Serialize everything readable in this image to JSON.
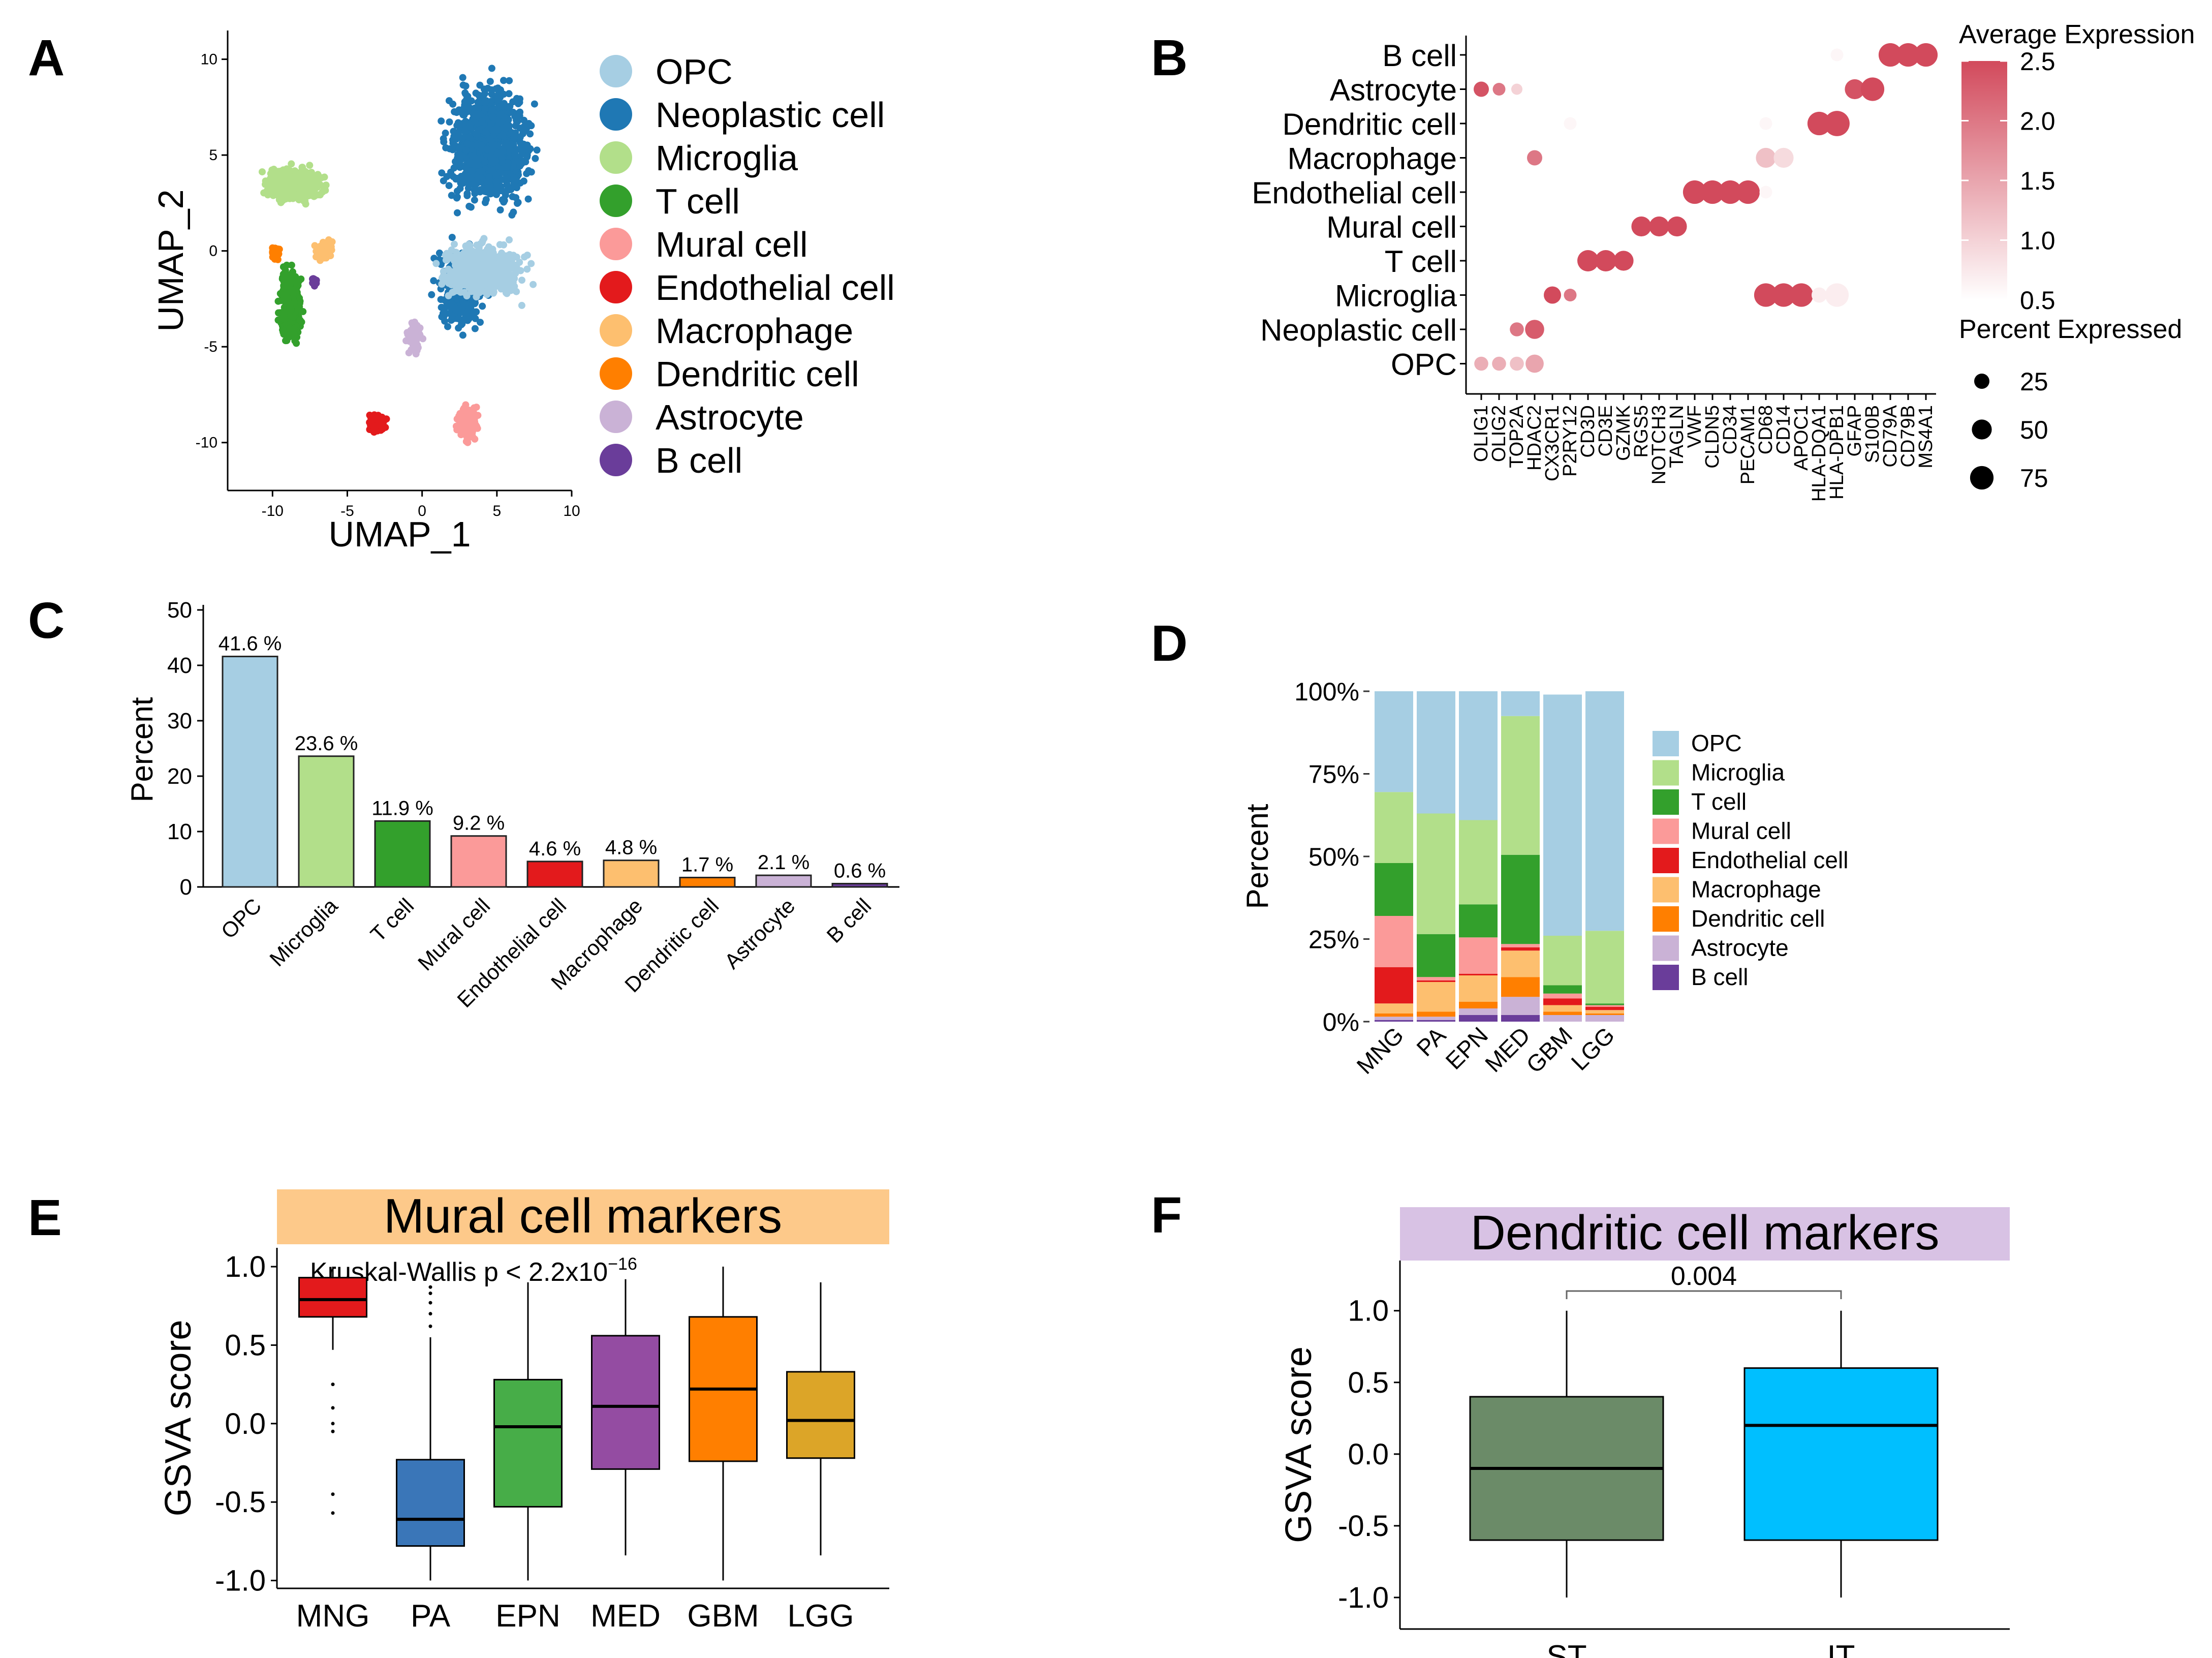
{
  "colors": {
    "OPC": "#a6cee3",
    "Neoplastic cell": "#1f78b4",
    "Microglia": "#b2df8a",
    "T cell": "#33a02c",
    "Mural cell": "#fb9a99",
    "Endothelial cell": "#e31a1c",
    "Macrophage": "#fdbf6f",
    "Dendritic cell": "#ff7f00",
    "Astrocyte": "#cab2d6",
    "B cell": "#6a3d9a",
    "dot_high": "#d24a5c",
    "mural_banner": "#fdc98a",
    "dendritic_banner": "#d8c2e4"
  },
  "panel_labels": [
    "A",
    "B",
    "C",
    "D",
    "E",
    "F"
  ],
  "chart_data": [
    {
      "panel": "A",
      "type": "scatter",
      "title": "",
      "xlabel": "UMAP_1",
      "ylabel": "UMAP_2",
      "xlim": [
        -13,
        10
      ],
      "ylim": [
        -12.5,
        11.5
      ],
      "xticks": [
        "-10",
        "-5",
        "0",
        "5",
        "10"
      ],
      "xtick_values": [
        -10,
        -5,
        0,
        5,
        10
      ],
      "yticks": [
        "10",
        "5",
        "0",
        "-5",
        "-10"
      ],
      "ytick_values": [
        10,
        5,
        0,
        -5,
        -10
      ],
      "legend": [
        "OPC",
        "Neoplastic cell",
        "Microglia",
        "T cell",
        "Mural cell",
        "Endothelial cell",
        "Macrophage",
        "Dendritic cell",
        "Astrocyte",
        "B cell"
      ],
      "clusters": [
        {
          "name": "Neoplastic cell",
          "center": [
            4.5,
            5.5
          ],
          "spread": [
            3.2,
            3.6
          ],
          "n": 900
        },
        {
          "name": "Neoplastic cell",
          "center": [
            2.5,
            -2.0
          ],
          "spread": [
            1.8,
            2.5
          ],
          "n": 350
        },
        {
          "name": "OPC",
          "center": [
            4.0,
            -1.0
          ],
          "spread": [
            3.0,
            1.6
          ],
          "n": 650
        },
        {
          "name": "Microglia",
          "center": [
            -8.5,
            3.5
          ],
          "spread": [
            2.2,
            1.0
          ],
          "n": 450
        },
        {
          "name": "T cell",
          "center": [
            -8.8,
            -2.8
          ],
          "spread": [
            0.8,
            2.2
          ],
          "n": 350
        },
        {
          "name": "Mural cell",
          "center": [
            3.0,
            -9.0
          ],
          "spread": [
            0.8,
            1.0
          ],
          "n": 200
        },
        {
          "name": "Endothelial cell",
          "center": [
            -3.0,
            -9.0
          ],
          "spread": [
            0.6,
            0.5
          ],
          "n": 150
        },
        {
          "name": "Macrophage",
          "center": [
            -6.5,
            0.0
          ],
          "spread": [
            0.7,
            0.6
          ],
          "n": 90
        },
        {
          "name": "Dendritic cell",
          "center": [
            -9.8,
            -0.1
          ],
          "spread": [
            0.3,
            0.4
          ],
          "n": 50
        },
        {
          "name": "Astrocyte",
          "center": [
            -0.5,
            -4.5
          ],
          "spread": [
            0.6,
            1.0
          ],
          "n": 80
        },
        {
          "name": "B cell",
          "center": [
            -7.2,
            -1.6
          ],
          "spread": [
            0.2,
            0.3
          ],
          "n": 25
        }
      ]
    },
    {
      "panel": "B",
      "type": "dotplot",
      "cell_types": [
        "B cell",
        "Astrocyte",
        "Dendritic cell",
        "Macrophage",
        "Endothelial cell",
        "Mural cell",
        "T cell",
        "Microglia",
        "Neoplastic cell",
        "OPC"
      ],
      "genes": [
        "OLIG1",
        "OLIG2",
        "TOP2A",
        "HDAC2",
        "CX3CR1",
        "P2RY12",
        "CD3D",
        "CD3E",
        "GZMK",
        "RGS5",
        "NOTCH3",
        "TAGLN",
        "VWF",
        "CLDN5",
        "CD34",
        "PECAM1",
        "CD68",
        "CD14",
        "APOC1",
        "HLA-DQA1",
        "HLA-DPB1",
        "GFAP",
        "S100B",
        "CD79A",
        "CD79B",
        "MS4A1"
      ],
      "points": [
        {
          "cell": "B cell",
          "gene": "CD79A",
          "pct": 75,
          "avg": 2.5
        },
        {
          "cell": "B cell",
          "gene": "CD79B",
          "pct": 75,
          "avg": 2.5
        },
        {
          "cell": "B cell",
          "gene": "MS4A1",
          "pct": 75,
          "avg": 2.5
        },
        {
          "cell": "B cell",
          "gene": "HLA-DPB1",
          "pct": 15,
          "avg": 0.6
        },
        {
          "cell": "Astrocyte",
          "gene": "OLIG1",
          "pct": 25,
          "avg": 2.4
        },
        {
          "cell": "Astrocyte",
          "gene": "OLIG2",
          "pct": 15,
          "avg": 2.0
        },
        {
          "cell": "Astrocyte",
          "gene": "TOP2A",
          "pct": 10,
          "avg": 1.0
        },
        {
          "cell": "Astrocyte",
          "gene": "GFAP",
          "pct": 50,
          "avg": 2.4
        },
        {
          "cell": "Astrocyte",
          "gene": "S100B",
          "pct": 75,
          "avg": 2.5
        },
        {
          "cell": "Dendritic cell",
          "gene": "P2RY12",
          "pct": 15,
          "avg": 0.6
        },
        {
          "cell": "Dendritic cell",
          "gene": "CD68",
          "pct": 15,
          "avg": 0.6
        },
        {
          "cell": "Dendritic cell",
          "gene": "HLA-DQA1",
          "pct": 75,
          "avg": 2.5
        },
        {
          "cell": "Dendritic cell",
          "gene": "HLA-DPB1",
          "pct": 90,
          "avg": 2.5
        },
        {
          "cell": "Macrophage",
          "gene": "HDAC2",
          "pct": 25,
          "avg": 2.0
        },
        {
          "cell": "Macrophage",
          "gene": "CD68",
          "pct": 50,
          "avg": 1.2
        },
        {
          "cell": "Macrophage",
          "gene": "CD14",
          "pct": 50,
          "avg": 0.9
        },
        {
          "cell": "Endothelial cell",
          "gene": "VWF",
          "pct": 75,
          "avg": 2.5
        },
        {
          "cell": "Endothelial cell",
          "gene": "CLDN5",
          "pct": 75,
          "avg": 2.5
        },
        {
          "cell": "Endothelial cell",
          "gene": "CD34",
          "pct": 75,
          "avg": 2.5
        },
        {
          "cell": "Endothelial cell",
          "gene": "PECAM1",
          "pct": 75,
          "avg": 2.5
        },
        {
          "cell": "Endothelial cell",
          "gene": "CD68",
          "pct": 15,
          "avg": 0.6
        },
        {
          "cell": "Mural cell",
          "gene": "RGS5",
          "pct": 50,
          "avg": 2.5
        },
        {
          "cell": "Mural cell",
          "gene": "NOTCH3",
          "pct": 50,
          "avg": 2.5
        },
        {
          "cell": "Mural cell",
          "gene": "TAGLN",
          "pct": 50,
          "avg": 2.5
        },
        {
          "cell": "T cell",
          "gene": "CD3D",
          "pct": 60,
          "avg": 2.5
        },
        {
          "cell": "T cell",
          "gene": "CD3E",
          "pct": 60,
          "avg": 2.5
        },
        {
          "cell": "T cell",
          "gene": "GZMK",
          "pct": 50,
          "avg": 2.5
        },
        {
          "cell": "Microglia",
          "gene": "CX3CR1",
          "pct": 35,
          "avg": 2.5
        },
        {
          "cell": "Microglia",
          "gene": "P2RY12",
          "pct": 15,
          "avg": 2.0
        },
        {
          "cell": "Microglia",
          "gene": "CD68",
          "pct": 75,
          "avg": 2.5
        },
        {
          "cell": "Microglia",
          "gene": "CD14",
          "pct": 75,
          "avg": 2.5
        },
        {
          "cell": "Microglia",
          "gene": "APOC1",
          "pct": 75,
          "avg": 2.5
        },
        {
          "cell": "Microglia",
          "gene": "HLA-DQA1",
          "pct": 25,
          "avg": 0.7
        },
        {
          "cell": "Microglia",
          "gene": "HLA-DPB1",
          "pct": 75,
          "avg": 0.7
        },
        {
          "cell": "Neoplastic cell",
          "gene": "TOP2A",
          "pct": 20,
          "avg": 2.0
        },
        {
          "cell": "Neoplastic cell",
          "gene": "HDAC2",
          "pct": 45,
          "avg": 2.3
        },
        {
          "cell": "OPC",
          "gene": "OLIG1",
          "pct": 20,
          "avg": 1.4
        },
        {
          "cell": "OPC",
          "gene": "OLIG2",
          "pct": 20,
          "avg": 1.4
        },
        {
          "cell": "OPC",
          "gene": "TOP2A",
          "pct": 20,
          "avg": 1.2
        },
        {
          "cell": "OPC",
          "gene": "HDAC2",
          "pct": 40,
          "avg": 1.5
        }
      ],
      "color_legend": {
        "title": "Average Expression",
        "ticks": [
          "2.5",
          "2.0",
          "1.5",
          "1.0",
          "0.5"
        ],
        "tick_values": [
          2.5,
          2.0,
          1.5,
          1.0,
          0.5
        ],
        "range": [
          0.5,
          2.5
        ]
      },
      "size_legend": {
        "title": "Percent Expressed",
        "labels": [
          "25",
          "50",
          "75"
        ],
        "values": [
          25,
          50,
          75
        ]
      }
    },
    {
      "panel": "C",
      "type": "bar",
      "ylabel": "Percent",
      "ylim": [
        0,
        50
      ],
      "yticks": [
        "50",
        "40",
        "30",
        "20",
        "10",
        "0"
      ],
      "ytick_values": [
        50,
        40,
        30,
        20,
        10,
        0
      ],
      "categories": [
        "OPC",
        "Microglia",
        "T cell",
        "Mural cell",
        "Endothelial cell",
        "Macrophage",
        "Dendritic cell",
        "Astrocyte",
        "B cell"
      ],
      "values": [
        41.6,
        23.6,
        11.9,
        9.2,
        4.6,
        4.8,
        1.7,
        2.1,
        0.6
      ],
      "labels": [
        "41.6 %",
        "23.6 %",
        "11.9 %",
        "9.2 %",
        "4.6 %",
        "4.8 %",
        "1.7 %",
        "2.1 %",
        "0.6 %"
      ]
    },
    {
      "panel": "D",
      "type": "stacked-bar",
      "ylabel": "Percent",
      "yticks": [
        "100%",
        "75%",
        "50%",
        "25%",
        "0%"
      ],
      "ytick_values": [
        100,
        75,
        50,
        25,
        0
      ],
      "categories": [
        "MNG",
        "PA",
        "EPN",
        "MED",
        "GBM",
        "LGG"
      ],
      "legend": [
        "OPC",
        "Microglia",
        "T cell",
        "Mural cell",
        "Endothelial cell",
        "Macrophage",
        "Dendritic cell",
        "Astrocyte",
        "B cell"
      ],
      "series": [
        {
          "name": "B cell",
          "values": [
            0.5,
            0.5,
            2,
            2,
            0,
            0
          ]
        },
        {
          "name": "Astrocyte",
          "values": [
            1,
            1,
            2,
            5.5,
            2,
            2
          ]
        },
        {
          "name": "Dendritic cell",
          "values": [
            1,
            1.5,
            2,
            6,
            1,
            0.5
          ]
        },
        {
          "name": "Macrophage",
          "values": [
            3,
            9,
            8,
            8,
            2,
            1
          ]
        },
        {
          "name": "Endothelial cell",
          "values": [
            11,
            0.5,
            0.5,
            1,
            2,
            1
          ]
        },
        {
          "name": "Mural cell",
          "values": [
            15.5,
            1,
            11,
            1,
            1.5,
            0.5
          ]
        },
        {
          "name": "T cell",
          "values": [
            16,
            13,
            10,
            27,
            2.5,
            0.5
          ]
        },
        {
          "name": "Microglia",
          "values": [
            21.5,
            36.5,
            25.5,
            42,
            15,
            22
          ]
        },
        {
          "name": "OPC",
          "values": [
            30.5,
            37,
            39,
            7.5,
            73,
            72.5
          ]
        }
      ]
    },
    {
      "panel": "E",
      "type": "boxplot",
      "title": "Mural cell markers",
      "annotation": "Kruskal-Wallis p < 2.2x10",
      "annotation_exp": "−16",
      "ylabel": "GSVA score",
      "ylim": [
        -1.05,
        1.12
      ],
      "yticks": [
        "1.0",
        "0.5",
        "0.0",
        "-0.5",
        "-1.0"
      ],
      "ytick_values": [
        1.0,
        0.5,
        0.0,
        -0.5,
        -1.0
      ],
      "categories": [
        "MNG",
        "PA",
        "EPN",
        "MED",
        "GBM",
        "LGG"
      ],
      "fills": [
        "#e31a1c",
        "#3a76b8",
        "#47ad48",
        "#944ca2",
        "#ff7f00",
        "#dca528"
      ],
      "boxes": [
        {
          "lo": 0.47,
          "q1": 0.68,
          "med": 0.79,
          "q3": 0.93,
          "hi": 1.0,
          "outliers": [
            0.25,
            0.1,
            0.0,
            -0.05,
            -0.45,
            -0.57
          ]
        },
        {
          "lo": -1.0,
          "q1": -0.78,
          "med": -0.61,
          "q3": -0.23,
          "hi": 0.55,
          "outliers": [
            0.62,
            0.7,
            0.77,
            0.83,
            0.87
          ]
        },
        {
          "lo": -1.0,
          "q1": -0.53,
          "med": -0.02,
          "q3": 0.28,
          "hi": 0.9,
          "outliers": []
        },
        {
          "lo": -0.84,
          "q1": -0.29,
          "med": 0.11,
          "q3": 0.56,
          "hi": 0.92,
          "outliers": []
        },
        {
          "lo": -1.0,
          "q1": -0.24,
          "med": 0.22,
          "q3": 0.68,
          "hi": 1.0,
          "outliers": []
        },
        {
          "lo": -0.84,
          "q1": -0.22,
          "med": 0.02,
          "q3": 0.33,
          "hi": 0.9,
          "outliers": []
        }
      ]
    },
    {
      "panel": "F",
      "type": "boxplot",
      "title": "Dendritic cell markers",
      "ylabel": "GSVA score",
      "ylim": [
        -1.22,
        1.35
      ],
      "yticks": [
        "1.0",
        "0.5",
        "0.0",
        "-0.5",
        "-1.0"
      ],
      "ytick_values": [
        1.0,
        0.5,
        0.0,
        -0.5,
        -1.0
      ],
      "categories": [
        "ST",
        "IT"
      ],
      "fills": [
        "#6b8b68",
        "#00bfff"
      ],
      "pvalue": "0.004",
      "boxes": [
        {
          "lo": -1.0,
          "q1": -0.6,
          "med": -0.1,
          "q3": 0.4,
          "hi": 1.0,
          "outliers": []
        },
        {
          "lo": -1.0,
          "q1": -0.6,
          "med": 0.2,
          "q3": 0.6,
          "hi": 1.0,
          "outliers": []
        }
      ]
    }
  ]
}
